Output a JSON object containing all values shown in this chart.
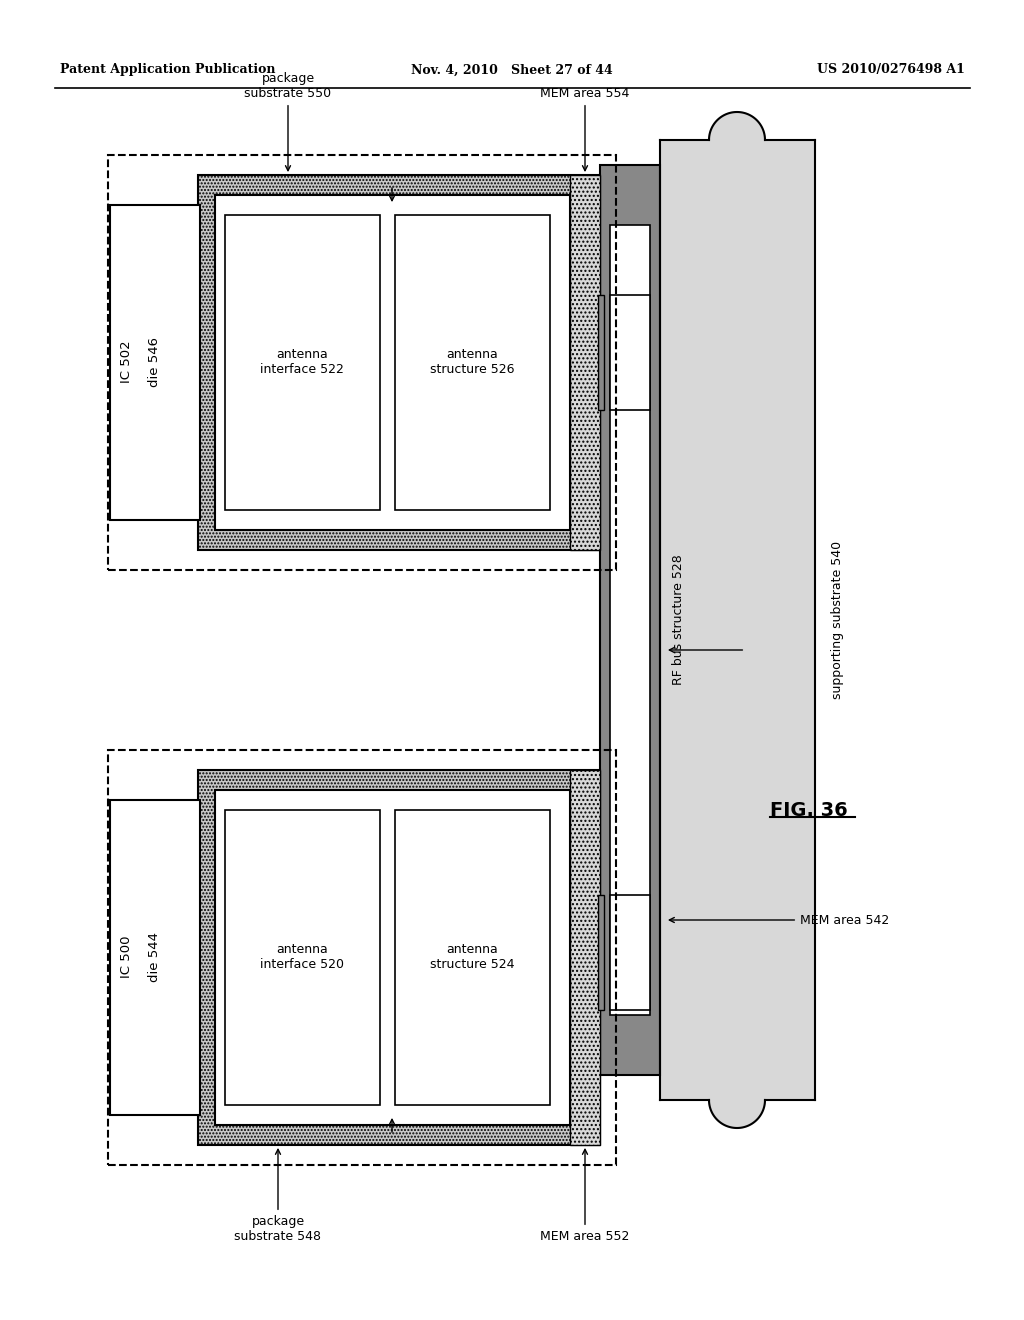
{
  "bg_color": "#ffffff",
  "header_left": "Patent Application Publication",
  "header_mid": "Nov. 4, 2010   Sheet 27 of 44",
  "header_right": "US 2010/0276498 A1",
  "fig_label": "FIG. 36",
  "top_ic_label": "IC 502",
  "top_die_label": "die 546",
  "top_ai_label": "antenna\ninterface 522",
  "top_as_label": "antenna\nstructure 526",
  "top_pkg_label": "package\nsubstrate 550",
  "top_mem_label": "MEM area 554",
  "bot_ic_label": "IC 500",
  "bot_die_label": "die 544",
  "bot_ai_label": "antenna\ninterface 520",
  "bot_as_label": "antenna\nstructure 524",
  "bot_pkg_label": "package\nsubstrate 548",
  "bot_mem_label": "MEM area 552",
  "rf_bus_label": "RF bus structure 528",
  "support_label": "supporting substrate 540",
  "mem_area_542_label": "MEM area 542",
  "gray_fill": "#c8c8c8",
  "dot_fill": "#d8d8d8",
  "white": "#ffffff",
  "black": "#000000",
  "mid_gray": "#888888"
}
